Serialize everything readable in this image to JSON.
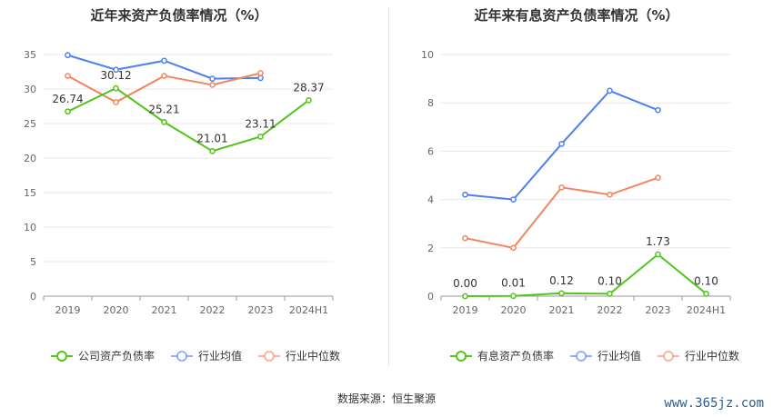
{
  "chart_data": [
    {
      "type": "line",
      "title": "近年来资产负债率情况（%）",
      "categories": [
        "2019",
        "2020",
        "2021",
        "2022",
        "2023",
        "2024H1"
      ],
      "ylim": [
        0,
        35
      ],
      "yticks": [
        0,
        5,
        10,
        15,
        20,
        25,
        30,
        35
      ],
      "grid": true,
      "legend_position": "bottom",
      "series": [
        {
          "name": "公司资产负债率",
          "color": "#52c41a",
          "values": [
            26.74,
            30.12,
            25.21,
            21.01,
            23.11,
            28.37
          ],
          "labels": [
            "26.74",
            "30.12",
            "25.21",
            "21.01",
            "23.11",
            "28.37"
          ]
        },
        {
          "name": "行业均值",
          "color": "#4e7ff0",
          "values": [
            34.9,
            32.8,
            34.1,
            31.5,
            31.6,
            null
          ]
        },
        {
          "name": "行业中位数",
          "color": "#f3865e",
          "values": [
            31.9,
            28.1,
            31.9,
            30.6,
            32.3,
            null
          ]
        }
      ]
    },
    {
      "type": "line",
      "title": "近年来有息资产负债率情况（%）",
      "categories": [
        "2019",
        "2020",
        "2021",
        "2022",
        "2023",
        "2024H1"
      ],
      "ylim": [
        0,
        10
      ],
      "yticks": [
        0,
        2,
        4,
        6,
        8,
        10
      ],
      "grid": true,
      "legend_position": "bottom",
      "series": [
        {
          "name": "有息资产负债率",
          "color": "#52c41a",
          "values": [
            0.0,
            0.01,
            0.12,
            0.1,
            1.73,
            0.1
          ],
          "labels": [
            "0.00",
            "0.01",
            "0.12",
            "0.10",
            "1.73",
            "0.10"
          ]
        },
        {
          "name": "行业均值",
          "color": "#4e7ff0",
          "values": [
            4.2,
            4.0,
            6.3,
            8.5,
            7.7,
            null
          ]
        },
        {
          "name": "行业中位数",
          "color": "#f3865e",
          "values": [
            2.4,
            2.0,
            4.5,
            4.2,
            4.9,
            null
          ]
        }
      ]
    }
  ],
  "footer": {
    "source": "数据来源：恒生聚源",
    "watermark": "www.365jz.com"
  }
}
